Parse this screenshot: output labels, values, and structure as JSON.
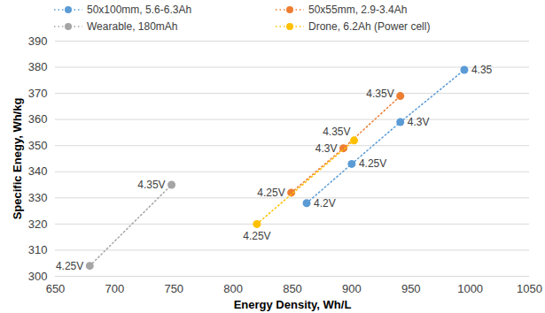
{
  "chart_data": {
    "type": "scatter",
    "x_label": "Energy Density, Wh/L",
    "y_label": "Specific Enegy, Wh/kg",
    "xlim": [
      650,
      1050
    ],
    "xticks": [
      650,
      700,
      750,
      800,
      850,
      900,
      950,
      1000,
      1050
    ],
    "ylim": [
      300,
      390
    ],
    "yticks": [
      300,
      310,
      320,
      330,
      340,
      350,
      360,
      370,
      380,
      390
    ],
    "grid": true,
    "legend": "top",
    "marker": "circle",
    "line_style": "dotted",
    "series": [
      {
        "name": "50x100mm, 5.6-6.3Ah",
        "color": "#5b9bd5",
        "x": [
          862,
          900,
          941,
          995
        ],
        "values": [
          328,
          343,
          359,
          379
        ],
        "labels": [
          "4.2V",
          "4.25V",
          "4.3V",
          "4.35"
        ]
      },
      {
        "name": "50x55mm, 2.9-3.4Ah",
        "color": "#ed7d31",
        "x": [
          849,
          893,
          941
        ],
        "values": [
          332,
          349,
          369
        ],
        "labels": [
          "4.25V",
          "4.3V",
          "4.35V"
        ]
      },
      {
        "name": "Wearable, 180mAh",
        "color": "#a5a5a5",
        "x": [
          679,
          748
        ],
        "values": [
          304,
          335
        ],
        "labels": [
          "4.25V",
          "4.35V"
        ]
      },
      {
        "name": "Drone, 6.2Ah (Power cell)",
        "color": "#ffc000",
        "x": [
          820,
          902
        ],
        "values": [
          320,
          352
        ],
        "labels": [
          "4.25V",
          "4.35V"
        ]
      }
    ]
  }
}
